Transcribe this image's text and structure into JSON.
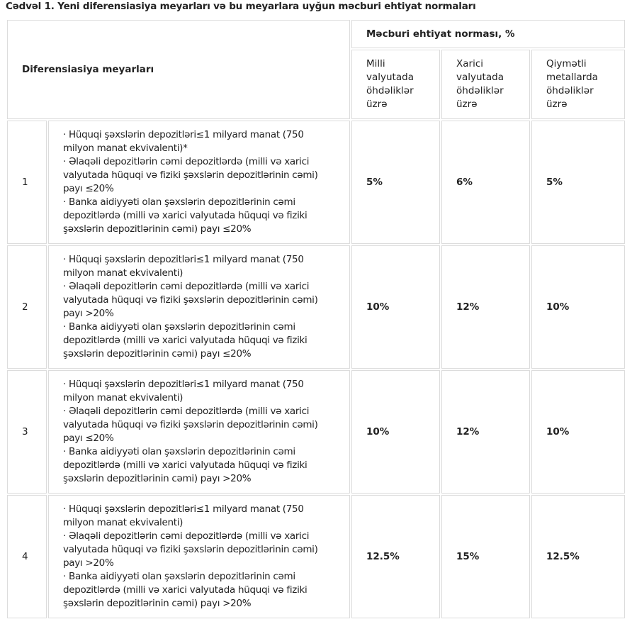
{
  "title": "Cədvəl 1. Yeni diferensiasiya meyarları və bu meyarlara uyğun məcburi ehtiyat normaları",
  "header": {
    "criteria": "Diferensiasiya meyarları",
    "group": "Məcburi ehtiyat norması, %",
    "columns": [
      "Milli valyutada öhdəliklər üzrə",
      "Xarici valyutada öhdəliklər üzrə",
      "Qiymətli metallarda öhdəliklər üzrə"
    ]
  },
  "rows": [
    {
      "number": "1",
      "criteria": [
        "· Hüquqi şəxslərin depozitləri≤1 milyard manat (750 milyon manat ekvivalenti)*",
        "· Əlaqəli depozitlərin cəmi depozitlərdə (milli və xarici valyutada hüquqi və fiziki şəxslərin depozitlərinin cəmi) payı ≤20%",
        "· Banka aidiyyəti olan şəxslərin depozitlərinin cəmi depozitlərdə (milli və xarici valyutada hüquqi və fiziki şəxslərin depozitlərinin cəmi) payı ≤20%"
      ],
      "values": [
        "5%",
        "6%",
        "5%"
      ]
    },
    {
      "number": "2",
      "criteria": [
        "· Hüquqi şəxslərin depozitləri≤1 milyard manat (750 milyon manat ekvivalenti)",
        "· Əlaqəli depozitlərin cəmi depozitlərdə (milli və xarici valyutada hüquqi və fiziki şəxslərin depozitlərinin cəmi) payı >20%",
        "· Banka aidiyyəti olan şəxslərin depozitlərinin cəmi depozitlərdə (milli və xarici valyutada hüquqi və fiziki şəxslərin depozitlərinin cəmi) payı ≤20%"
      ],
      "values": [
        "10%",
        "12%",
        "10%"
      ]
    },
    {
      "number": "3",
      "criteria": [
        "· Hüquqi şəxslərin depozitləri≤1 milyard manat (750 milyon manat ekvivalenti)",
        "· Əlaqəli depozitlərin cəmi depozitlərdə (milli və xarici valyutada hüquqi və fiziki şəxslərin depozitlərinin cəmi) payı ≤20%",
        "· Banka aidiyyəti olan şəxslərin depozitlərinin cəmi depozitlərdə (milli və xarici valyutada hüquqi və fiziki şəxslərin depozitlərinin cəmi) payı >20%"
      ],
      "values": [
        "10%",
        "12%",
        "10%"
      ]
    },
    {
      "number": "4",
      "criteria": [
        "· Hüquqi şəxslərin depozitləri≤1 milyard manat (750 milyon manat ekvivalenti)",
        "· Əlaqəli depozitlərin cəmi depozitlərdə (milli və xarici valyutada hüquqi və fiziki şəxslərin depozitlərinin cəmi) payı >20%",
        "· Banka aidiyyəti olan şəxslərin depozitlərinin cəmi depozitlərdə (milli və xarici valyutada hüquqi və fiziki şəxslərin depozitlərinin cəmi) payı >20%"
      ],
      "values": [
        "12.5%",
        "15%",
        "12.5%"
      ]
    }
  ]
}
